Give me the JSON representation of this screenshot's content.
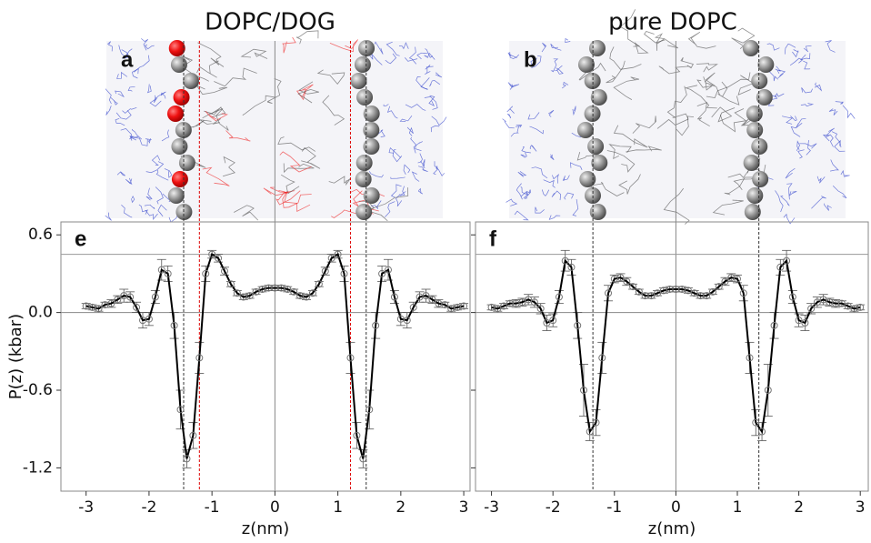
{
  "chart_data": [
    {
      "type": "line",
      "title": "DOPC/DOG",
      "panel_image_label": "a",
      "panel_label": "e",
      "xlabel": "z(nm)",
      "ylabel": "P(z) (kbar)",
      "color": "#000000",
      "marker_color": "#777777",
      "molecule_highlight": "#ee1111",
      "xlim": [
        -3.4,
        3.1
      ],
      "ylim": [
        -1.38,
        0.7
      ],
      "xticks": [
        -3,
        -2,
        -1,
        0,
        1,
        2,
        3
      ],
      "yticks": [
        -1.2,
        -0.6,
        {
          "value": 0,
          "label": "0.0"
        },
        0.6
      ],
      "ytick_labels": true,
      "zero_lines": true,
      "hlines": [
        0.45
      ],
      "vlines": [
        {
          "value": -1.45,
          "color": "#333333"
        },
        {
          "value": 1.45,
          "color": "#333333"
        },
        {
          "value": -1.2,
          "color": "#dd0000"
        },
        {
          "value": 1.2,
          "color": "#dd0000"
        }
      ],
      "x": [
        -3,
        -2.9,
        -2.8,
        -2.7,
        -2.6,
        -2.5,
        -2.4,
        -2.3,
        -2.2,
        -2.1,
        -2.0,
        -1.9,
        -1.8,
        -1.7,
        -1.6,
        -1.5,
        -1.4,
        -1.3,
        -1.2,
        -1.1,
        -1.0,
        -0.9,
        -0.8,
        -0.7,
        -0.6,
        -0.5,
        -0.4,
        -0.3,
        -0.2,
        -0.1,
        0,
        0.1,
        0.2,
        0.3,
        0.4,
        0.5,
        0.6,
        0.7,
        0.8,
        0.9,
        1.0,
        1.1,
        1.2,
        1.3,
        1.4,
        1.5,
        1.6,
        1.7,
        1.8,
        1.9,
        2.0,
        2.1,
        2.2,
        2.3,
        2.4,
        2.5,
        2.6,
        2.7,
        2.8,
        2.9,
        3
      ],
      "values": [
        0.05,
        0.04,
        0.03,
        0.06,
        0.07,
        0.1,
        0.13,
        0.12,
        0.04,
        -0.06,
        -0.05,
        0.12,
        0.33,
        0.3,
        -0.1,
        -0.75,
        -1.13,
        -0.95,
        -0.35,
        0.3,
        0.45,
        0.42,
        0.32,
        0.22,
        0.15,
        0.12,
        0.13,
        0.16,
        0.18,
        0.19,
        0.19,
        0.19,
        0.18,
        0.16,
        0.13,
        0.12,
        0.15,
        0.22,
        0.32,
        0.42,
        0.45,
        0.3,
        -0.35,
        -0.95,
        -1.13,
        -0.75,
        -0.1,
        0.3,
        0.33,
        0.12,
        -0.05,
        -0.06,
        0.04,
        0.12,
        0.13,
        0.1,
        0.07,
        0.06,
        0.03,
        0.04,
        0.05
      ],
      "errors": [
        0.02,
        0.02,
        0.02,
        0.02,
        0.03,
        0.03,
        0.05,
        0.04,
        0.04,
        0.06,
        0.05,
        0.05,
        0.08,
        0.06,
        0.1,
        0.15,
        0.07,
        0.1,
        0.12,
        0.06,
        0.03,
        0.03,
        0.03,
        0.02,
        0.02,
        0.02,
        0.02,
        0.02,
        0.02,
        0.02,
        0.02,
        0.02,
        0.02,
        0.02,
        0.02,
        0.02,
        0.02,
        0.02,
        0.03,
        0.03,
        0.03,
        0.06,
        0.12,
        0.1,
        0.07,
        0.15,
        0.1,
        0.06,
        0.08,
        0.05,
        0.05,
        0.06,
        0.04,
        0.04,
        0.05,
        0.03,
        0.03,
        0.02,
        0.02,
        0.02,
        0.02
      ]
    },
    {
      "type": "line",
      "title": "pure DOPC",
      "panel_image_label": "b",
      "panel_label": "f",
      "xlabel": "z(nm)",
      "color": "#000000",
      "marker_color": "#777777",
      "xlim": [
        -3.26,
        3.13
      ],
      "ylim": [
        -1.38,
        0.7
      ],
      "xticks": [
        -3,
        -2,
        -1,
        0,
        1,
        2,
        3
      ],
      "yticks": [
        -1.2,
        -0.6,
        0,
        0.6
      ],
      "ytick_labels": false,
      "zero_lines": true,
      "hlines": [
        0.45
      ],
      "vlines": [
        {
          "value": -1.35,
          "color": "#333333"
        },
        {
          "value": 1.35,
          "color": "#333333"
        }
      ],
      "x": [
        -3,
        -2.9,
        -2.8,
        -2.7,
        -2.6,
        -2.5,
        -2.4,
        -2.3,
        -2.2,
        -2.1,
        -2.0,
        -1.9,
        -1.8,
        -1.7,
        -1.6,
        -1.5,
        -1.4,
        -1.3,
        -1.2,
        -1.1,
        -1.0,
        -0.9,
        -0.8,
        -0.7,
        -0.6,
        -0.5,
        -0.4,
        -0.3,
        -0.2,
        -0.1,
        0,
        0.1,
        0.2,
        0.3,
        0.4,
        0.5,
        0.6,
        0.7,
        0.8,
        0.9,
        1.0,
        1.1,
        1.2,
        1.3,
        1.4,
        1.5,
        1.6,
        1.7,
        1.8,
        1.9,
        2.0,
        2.1,
        2.2,
        2.3,
        2.4,
        2.5,
        2.6,
        2.7,
        2.8,
        2.9,
        3
      ],
      "values": [
        0.04,
        0.03,
        0.05,
        0.07,
        0.07,
        0.08,
        0.1,
        0.08,
        0.03,
        -0.08,
        -0.06,
        0.12,
        0.4,
        0.35,
        -0.1,
        -0.6,
        -0.92,
        -0.85,
        -0.35,
        0.15,
        0.26,
        0.27,
        0.24,
        0.2,
        0.16,
        0.13,
        0.13,
        0.15,
        0.17,
        0.18,
        0.18,
        0.18,
        0.17,
        0.15,
        0.13,
        0.13,
        0.16,
        0.2,
        0.24,
        0.27,
        0.26,
        0.15,
        -0.35,
        -0.85,
        -0.92,
        -0.6,
        -0.1,
        0.35,
        0.4,
        0.12,
        -0.06,
        -0.08,
        0.03,
        0.08,
        0.1,
        0.08,
        0.07,
        0.07,
        0.05,
        0.03,
        0.04
      ],
      "errors": [
        0.02,
        0.02,
        0.02,
        0.02,
        0.03,
        0.03,
        0.04,
        0.04,
        0.04,
        0.06,
        0.05,
        0.05,
        0.08,
        0.06,
        0.1,
        0.2,
        0.07,
        0.1,
        0.12,
        0.06,
        0.03,
        0.03,
        0.03,
        0.02,
        0.02,
        0.02,
        0.02,
        0.02,
        0.02,
        0.02,
        0.02,
        0.02,
        0.02,
        0.02,
        0.02,
        0.02,
        0.02,
        0.02,
        0.03,
        0.03,
        0.03,
        0.06,
        0.12,
        0.1,
        0.07,
        0.2,
        0.1,
        0.06,
        0.08,
        0.05,
        0.05,
        0.06,
        0.04,
        0.04,
        0.04,
        0.03,
        0.03,
        0.02,
        0.02,
        0.02,
        0.02
      ]
    }
  ]
}
